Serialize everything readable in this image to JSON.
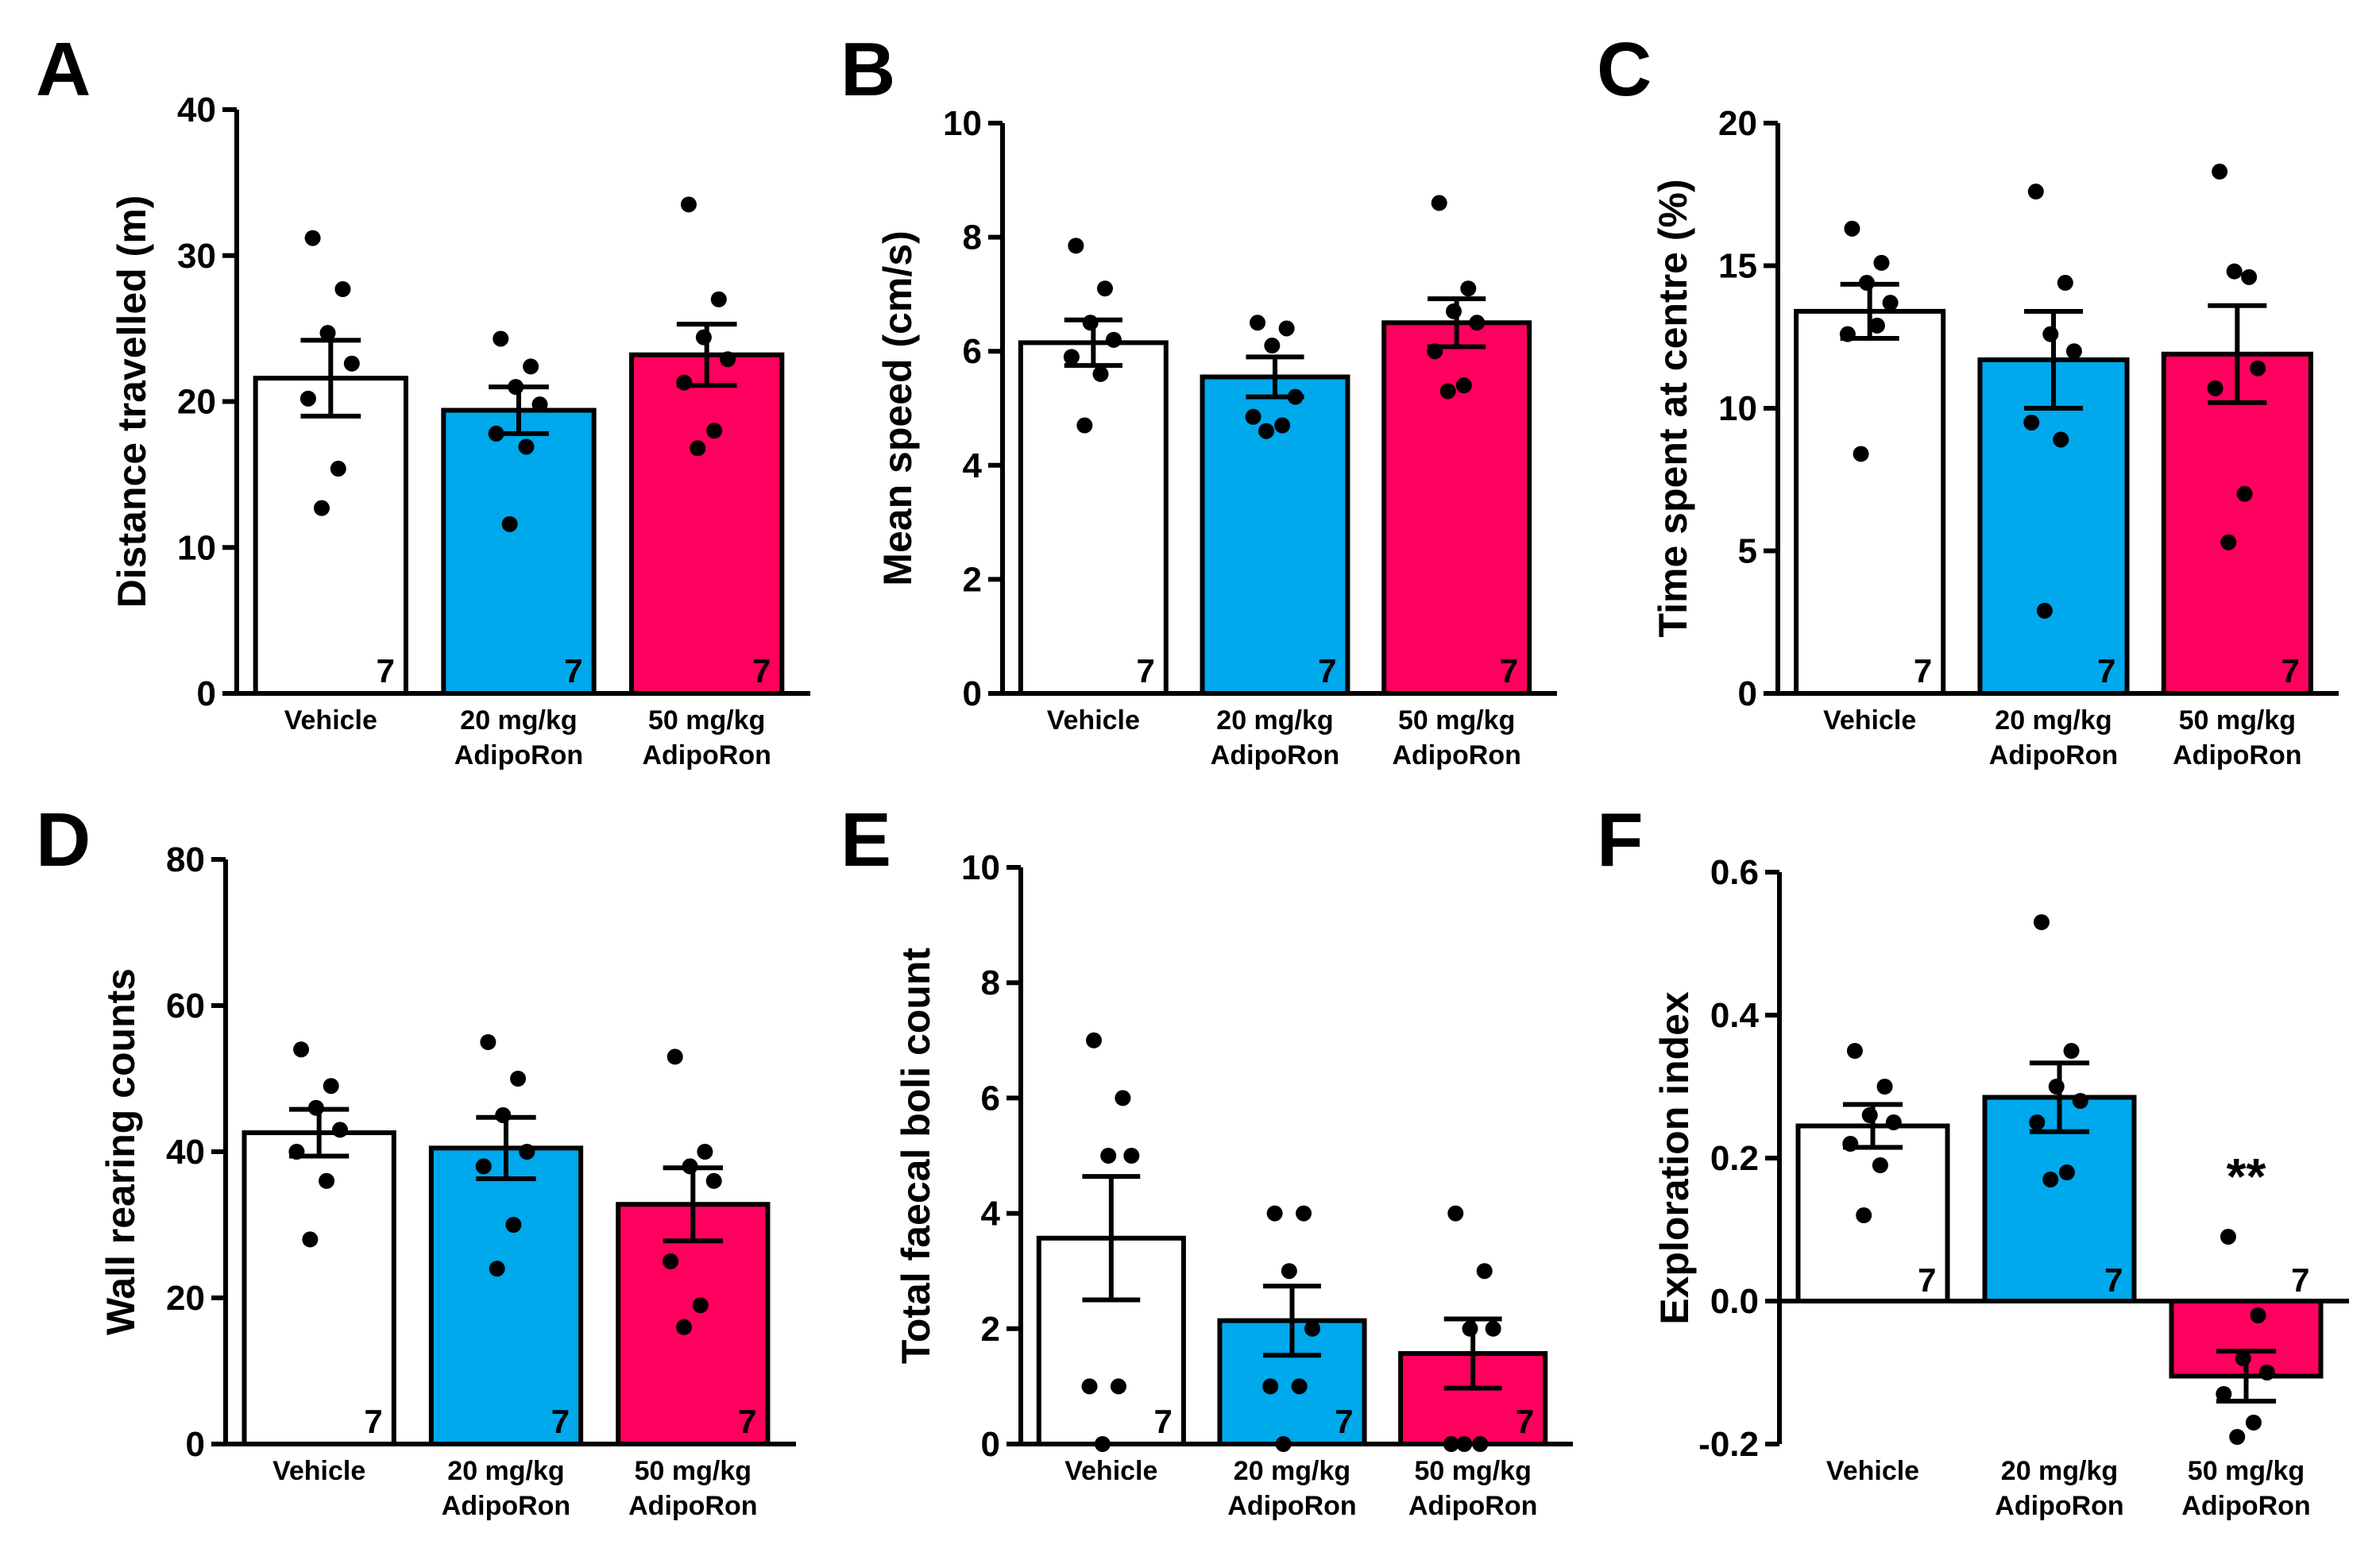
{
  "chart_data": [
    {
      "panel": "A",
      "type": "bar",
      "ylabel": "Distance travelled (m)",
      "ylim": [
        0,
        40
      ],
      "yticks": [
        0,
        10,
        20,
        30,
        40
      ],
      "categories": [
        [
          "Vehicle"
        ],
        [
          "20 mg/kg",
          "AdipoRon"
        ],
        [
          "50 mg/kg",
          "AdipoRon"
        ]
      ],
      "means": [
        21.6,
        19.4,
        23.2
      ],
      "sem": [
        2.6,
        1.6,
        2.1
      ],
      "points": [
        [
          31.2,
          27.7,
          24.7,
          22.6,
          20.2,
          15.4,
          12.7
        ],
        [
          24.3,
          22.4,
          21.0,
          19.8,
          17.8,
          16.9,
          11.6
        ],
        [
          33.5,
          27.0,
          24.4,
          22.9,
          21.3,
          18.0,
          16.8
        ]
      ],
      "n": [
        "7",
        "7",
        "7"
      ],
      "colors": [
        "#ffffff",
        "#00a8ec",
        "#ff005f"
      ],
      "significance": [
        "",
        "",
        ""
      ]
    },
    {
      "panel": "B",
      "type": "bar",
      "ylabel": "Mean speed (cm/s)",
      "ylim": [
        0,
        10
      ],
      "yticks": [
        0,
        2,
        4,
        6,
        8,
        10
      ],
      "categories": [
        [
          "Vehicle"
        ],
        [
          "20 mg/kg",
          "AdipoRon"
        ],
        [
          "50 mg/kg",
          "AdipoRon"
        ]
      ],
      "means": [
        6.15,
        5.55,
        6.5
      ],
      "sem": [
        0.4,
        0.35,
        0.42
      ],
      "points": [
        [
          7.85,
          7.1,
          6.5,
          6.2,
          5.9,
          5.6,
          4.7
        ],
        [
          6.5,
          6.4,
          6.1,
          5.2,
          4.85,
          4.7,
          4.6
        ],
        [
          8.6,
          7.1,
          6.7,
          6.5,
          6.0,
          5.4,
          5.3
        ]
      ],
      "n": [
        "7",
        "7",
        "7"
      ],
      "colors": [
        "#ffffff",
        "#00a8ec",
        "#ff005f"
      ],
      "significance": [
        "",
        "",
        ""
      ]
    },
    {
      "panel": "C",
      "type": "bar",
      "ylabel": "Time spent at centre (%)",
      "ylim": [
        0,
        20
      ],
      "yticks": [
        0,
        5,
        10,
        15,
        20
      ],
      "categories": [
        [
          "Vehicle"
        ],
        [
          "20 mg/kg",
          "AdipoRon"
        ],
        [
          "50 mg/kg",
          "AdipoRon"
        ]
      ],
      "means": [
        13.4,
        11.7,
        11.9
      ],
      "sem": [
        0.95,
        1.7,
        1.7
      ],
      "points": [
        [
          16.3,
          15.1,
          14.4,
          13.7,
          12.6,
          12.9,
          8.4
        ],
        [
          17.6,
          14.4,
          12.6,
          12.0,
          9.5,
          8.9,
          2.9
        ],
        [
          18.3,
          14.6,
          14.8,
          11.4,
          10.7,
          7.0,
          5.3
        ]
      ],
      "n": [
        "7",
        "7",
        "7"
      ],
      "colors": [
        "#ffffff",
        "#00a8ec",
        "#ff005f"
      ],
      "significance": [
        "",
        "",
        ""
      ]
    },
    {
      "panel": "D",
      "type": "bar",
      "ylabel": "Wall rearing counts",
      "ylim": [
        0,
        80
      ],
      "yticks": [
        0,
        20,
        40,
        60,
        80
      ],
      "categories": [
        [
          "Vehicle"
        ],
        [
          "20 mg/kg",
          "AdipoRon"
        ],
        [
          "50 mg/kg",
          "AdipoRon"
        ]
      ],
      "means": [
        42.6,
        40.5,
        32.8
      ],
      "sem": [
        3.2,
        4.2,
        5.0
      ],
      "points": [
        [
          54,
          49,
          46,
          43,
          40,
          36,
          28
        ],
        [
          55,
          50,
          45,
          40,
          38,
          30,
          24
        ],
        [
          53,
          40,
          38,
          36,
          25,
          19,
          16
        ]
      ],
      "n": [
        "7",
        "7",
        "7"
      ],
      "colors": [
        "#ffffff",
        "#00a8ec",
        "#ff005f"
      ],
      "significance": [
        "",
        "",
        ""
      ]
    },
    {
      "panel": "E",
      "type": "bar",
      "ylabel": "Total faecal boli count",
      "ylim": [
        0,
        10
      ],
      "yticks": [
        0,
        2,
        4,
        6,
        8,
        10
      ],
      "categories": [
        [
          "Vehicle"
        ],
        [
          "20 mg/kg",
          "AdipoRon"
        ],
        [
          "50 mg/kg",
          "AdipoRon"
        ]
      ],
      "means": [
        3.57,
        2.14,
        1.57
      ],
      "sem": [
        1.07,
        0.6,
        0.6
      ],
      "points": [
        [
          7,
          6,
          5,
          5,
          1,
          1,
          0
        ],
        [
          4,
          4,
          3,
          2,
          1,
          1,
          0
        ],
        [
          4,
          3,
          2,
          2,
          0,
          0,
          0
        ]
      ],
      "n": [
        "7",
        "7",
        "7"
      ],
      "colors": [
        "#ffffff",
        "#00a8ec",
        "#ff005f"
      ],
      "significance": [
        "",
        "",
        ""
      ]
    },
    {
      "panel": "F",
      "type": "bar",
      "ylabel": "Exploration index",
      "ylim": [
        -0.2,
        0.6
      ],
      "yticks": [
        -0.2,
        0.0,
        0.2,
        0.4,
        0.6
      ],
      "ytick_labels": [
        "-0.2",
        "0.0",
        "0.2",
        "0.4",
        "0.6"
      ],
      "categories": [
        [
          "Vehicle"
        ],
        [
          "20 mg/kg",
          "AdipoRon"
        ],
        [
          "50 mg/kg",
          "AdipoRon"
        ]
      ],
      "means": [
        0.245,
        0.285,
        -0.105
      ],
      "sem": [
        0.03,
        0.048,
        0.035
      ],
      "points": [
        [
          0.35,
          0.3,
          0.26,
          0.25,
          0.22,
          0.19,
          0.12
        ],
        [
          0.53,
          0.35,
          0.3,
          0.28,
          0.25,
          0.18,
          0.17
        ],
        [
          0.09,
          -0.02,
          -0.08,
          -0.1,
          -0.13,
          -0.17,
          -0.19
        ]
      ],
      "n": [
        "7",
        "7",
        "7"
      ],
      "colors": [
        "#ffffff",
        "#00a8ec",
        "#ff005f"
      ],
      "significance": [
        "",
        "",
        "**"
      ]
    }
  ]
}
